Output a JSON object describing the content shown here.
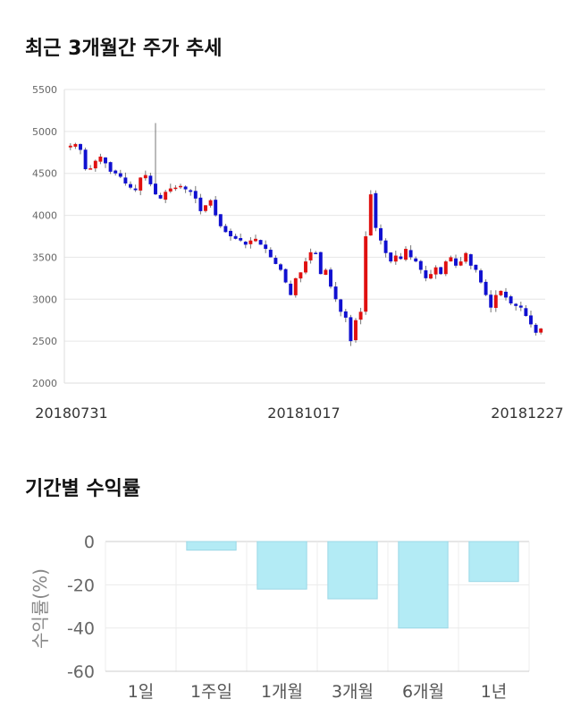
{
  "sections": {
    "price_title": "최근 3개월간 주가 추세",
    "returns_title": "기간별 수익률"
  },
  "chart_data": [
    {
      "type": "candlestick",
      "title": "최근 3개월간 주가 추세",
      "ylim": [
        2000,
        5500
      ],
      "yticks": [
        "2000",
        "2500",
        "3000",
        "3500",
        "4000",
        "4500",
        "5000",
        "5500"
      ],
      "xticks": [
        "20180731",
        "20181017",
        "20181227"
      ],
      "grid": true,
      "colors": {
        "up": "#e01010",
        "down": "#1010d0"
      },
      "closes": [
        4830,
        4850,
        4780,
        4550,
        4560,
        4650,
        4700,
        4620,
        4520,
        4500,
        4460,
        4380,
        4330,
        4300,
        4450,
        4480,
        4370,
        4250,
        4200,
        4280,
        4320,
        4330,
        4350,
        4310,
        4280,
        4200,
        4050,
        4120,
        4180,
        4000,
        3870,
        3800,
        3750,
        3720,
        3700,
        3650,
        3700,
        3720,
        3650,
        3600,
        3500,
        3420,
        3350,
        3200,
        3050,
        3250,
        3320,
        3450,
        3560,
        3550,
        3300,
        3350,
        3150,
        3000,
        2850,
        2780,
        2500,
        2750,
        2850,
        3750,
        4250,
        3850,
        3700,
        3550,
        3450,
        3520,
        3480,
        3600,
        3500,
        3450,
        3350,
        3250,
        3300,
        3380,
        3300,
        3450,
        3500,
        3400,
        3450,
        3550,
        3400,
        3350,
        3200,
        3050,
        2900,
        3050,
        3100,
        3020,
        2950,
        2920,
        2900,
        2800,
        2700,
        2600,
        2650
      ]
    },
    {
      "type": "bar",
      "title": "기간별 수익률",
      "ylabel": "수익률(%)",
      "ylim": [
        -60,
        0
      ],
      "yticks": [
        "0",
        "-20",
        "-40",
        "-60"
      ],
      "categories": [
        "1일",
        "1주일",
        "1개월",
        "3개월",
        "6개월",
        "1년"
      ],
      "values": [
        0,
        -4,
        -22,
        -26.5,
        -40,
        -18.5
      ],
      "colors": {
        "bar_fill": "#b3ebf5",
        "bar_stroke": "#9cd8e6"
      }
    }
  ]
}
